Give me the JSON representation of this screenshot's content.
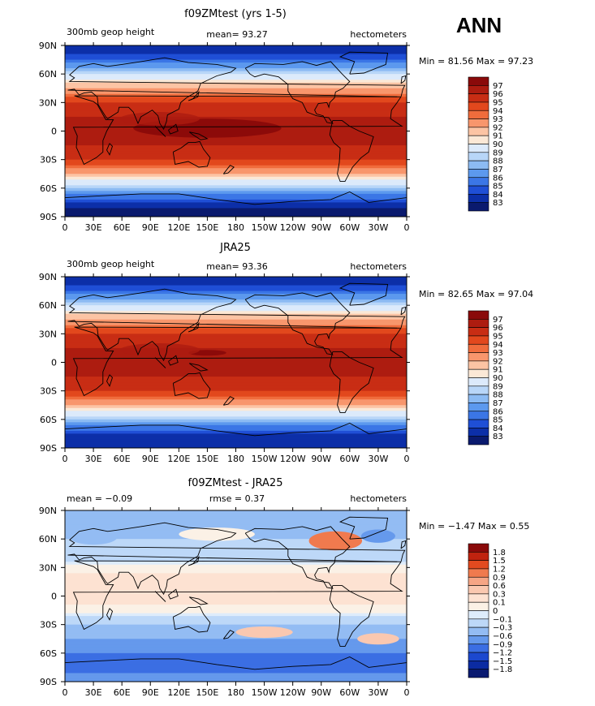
{
  "header": {
    "season": "ANN"
  },
  "panels": [
    {
      "title": "f09ZMtest (yrs 1-5)",
      "left_label": "300mb geop height",
      "center_label": "mean=  93.27",
      "right_label": "hectometers",
      "minmax": "Min =  81.56 Max =  97.23",
      "colorbar_levels": [
        "97",
        "96",
        "95",
        "94",
        "93",
        "92",
        "91",
        "90",
        "89",
        "88",
        "87",
        "86",
        "85",
        "84",
        "83"
      ]
    },
    {
      "title": "JRA25",
      "left_label": "300mb geop height",
      "center_label": "mean=  93.36",
      "right_label": "hectometers",
      "minmax": "Min =  82.65 Max =  97.04",
      "colorbar_levels": [
        "97",
        "96",
        "95",
        "94",
        "93",
        "92",
        "91",
        "90",
        "89",
        "88",
        "87",
        "86",
        "85",
        "84",
        "83"
      ]
    },
    {
      "title": "f09ZMtest - JRA25",
      "left_label": "mean =  −0.09",
      "center_label": "rmse =   0.37",
      "right_label": "hectometers",
      "minmax": "Min =  −1.47 Max =   0.55",
      "colorbar_levels": [
        "1.8",
        "1.5",
        "1.2",
        "0.9",
        "0.6",
        "0.3",
        "0.1",
        "0",
        "−0.1",
        "−0.3",
        "−0.6",
        "−0.9",
        "−1.2",
        "−1.5",
        "−1.8"
      ]
    }
  ],
  "chart_data": {
    "type": "heatmap",
    "x_ticks": [
      "0",
      "30E",
      "60E",
      "90E",
      "120E",
      "150E",
      "180",
      "150W",
      "120W",
      "90W",
      "60W",
      "30W",
      "0"
    ],
    "y_ticks": [
      "90N",
      "60N",
      "30N",
      "0",
      "30S",
      "60S",
      "90S"
    ],
    "colors": {
      "abs": [
        "#8a0a0a",
        "#ad1c10",
        "#c82d14",
        "#e2481d",
        "#f06c3c",
        "#f8966c",
        "#fcc4a4",
        "#fbe8d6",
        "#dceafb",
        "#b8d6f8",
        "#8cbbf3",
        "#5c99ee",
        "#3b76e6",
        "#1f4fd6",
        "#0c2fa8",
        "#0a1a6e"
      ],
      "diff": [
        "#8a0a0a",
        "#c0230f",
        "#e24a1f",
        "#f07a4e",
        "#f6a585",
        "#fac8b0",
        "#fde2d2",
        "#fbf1e6",
        "#deecfb",
        "#bdd8f8",
        "#93bcf3",
        "#6599ec",
        "#3b6ee3",
        "#1c48cf",
        "#0b2ba2",
        "#0a1a70"
      ]
    },
    "series": [
      {
        "name": "f09ZMtest (yrs 1-5)",
        "zonal_profile": [
          [
            90,
            83
          ],
          [
            75,
            85
          ],
          [
            60,
            89
          ],
          [
            45,
            92
          ],
          [
            30,
            95
          ],
          [
            15,
            96
          ],
          [
            0,
            96.5
          ],
          [
            -15,
            96
          ],
          [
            -30,
            95
          ],
          [
            -45,
            92
          ],
          [
            -60,
            88
          ],
          [
            -75,
            84
          ],
          [
            -90,
            82
          ]
        ]
      },
      {
        "name": "JRA25",
        "zonal_profile": [
          [
            90,
            83
          ],
          [
            75,
            85
          ],
          [
            60,
            89
          ],
          [
            45,
            92
          ],
          [
            30,
            95
          ],
          [
            15,
            96
          ],
          [
            0,
            96.2
          ],
          [
            -15,
            96
          ],
          [
            -30,
            95
          ],
          [
            -45,
            92
          ],
          [
            -60,
            88
          ],
          [
            -75,
            84
          ],
          [
            -90,
            83
          ]
        ]
      },
      {
        "name": "f09ZMtest - JRA25",
        "zonal_profile": [
          [
            90,
            -0.3
          ],
          [
            75,
            -0.6
          ],
          [
            60,
            -0.3
          ],
          [
            45,
            -0.3
          ],
          [
            30,
            0.05
          ],
          [
            15,
            0.2
          ],
          [
            0,
            0.2
          ],
          [
            -15,
            0.05
          ],
          [
            -30,
            -0.3
          ],
          [
            -45,
            -0.6
          ],
          [
            -60,
            -0.9
          ],
          [
            -75,
            -1.2
          ],
          [
            -90,
            -0.6
          ]
        ]
      }
    ]
  }
}
